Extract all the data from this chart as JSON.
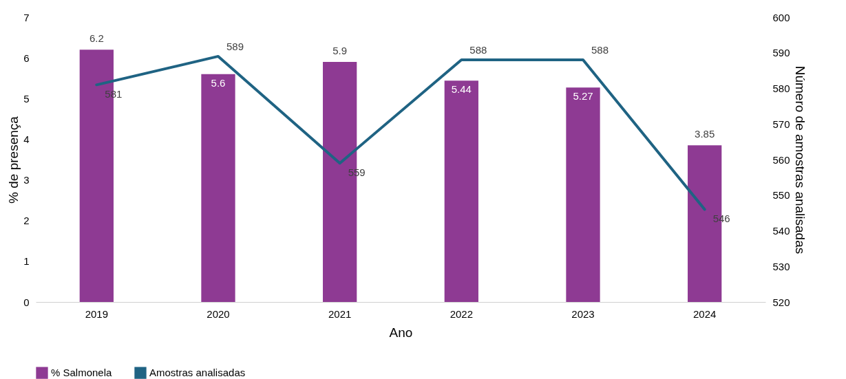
{
  "chart_data": {
    "type": "bar",
    "xlabel": "Ano",
    "ylabel": "% de presença",
    "y2label": "Número de amostras analisadas",
    "categories": [
      "2019",
      "2020",
      "2021",
      "2022",
      "2023",
      "2024"
    ],
    "series": [
      {
        "name": "% Salmonela",
        "color": "#8e3a93",
        "values": [
          6.2,
          5.6,
          5.9,
          5.44,
          5.27,
          3.85
        ]
      },
      {
        "name": "Amostras analisadas",
        "type": "line",
        "axis": "y2",
        "color": "#1f6383",
        "values": [
          581,
          589,
          559,
          588,
          588,
          546
        ]
      }
    ],
    "ylim": [
      0,
      7
    ],
    "yticks": [
      0,
      1,
      2,
      3,
      4,
      5,
      6,
      7
    ],
    "y2lim": [
      520,
      600
    ],
    "y2ticks": [
      520,
      530,
      540,
      550,
      560,
      570,
      580,
      590,
      600
    ],
    "data_labels": true,
    "grid": false,
    "legend": "bottom",
    "marker": "none",
    "line_style": "solid"
  }
}
